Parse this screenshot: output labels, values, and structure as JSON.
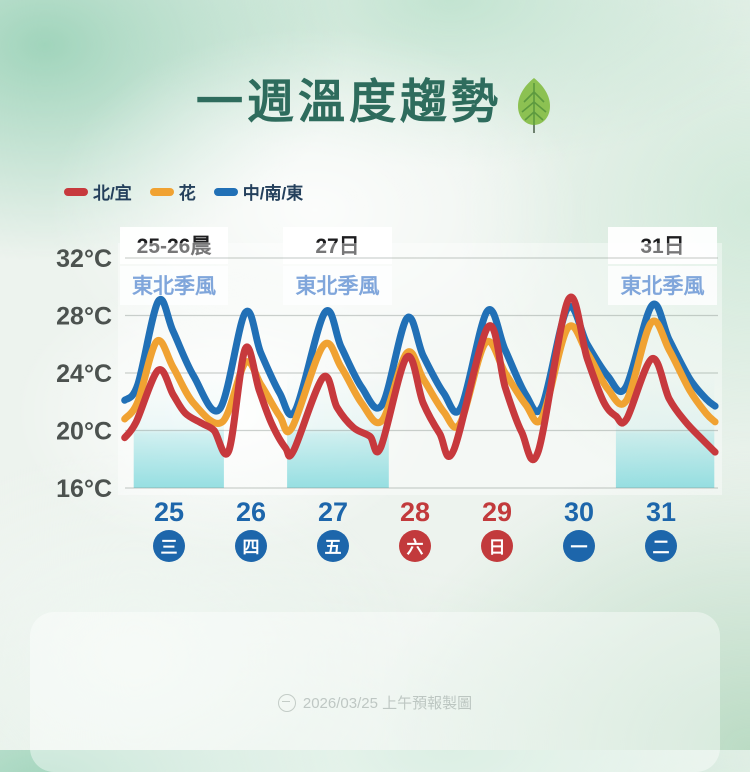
{
  "title": {
    "text": "一週溫度趨勢",
    "icon": "leaf-icon"
  },
  "legend": [
    {
      "label": "北/宜",
      "color": "#c7393d"
    },
    {
      "label": "花",
      "color": "#f0a232"
    },
    {
      "label": "中/南/東",
      "color": "#2170b6"
    }
  ],
  "annotations": [
    {
      "period": "25-26晨",
      "note": "東北季風"
    },
    {
      "period": "27日",
      "note": "東北季風"
    },
    {
      "period": "31日",
      "note": "東北季風"
    }
  ],
  "footer": {
    "watermark": "2026/03/25 上午預報製圖"
  },
  "chart_data": {
    "type": "line",
    "title": "一週溫度趨勢",
    "ylabel": "°C",
    "ylim": [
      16,
      32
    ],
    "yticks": [
      32,
      28,
      24,
      20,
      16
    ],
    "ytick_labels": [
      "32°C",
      "28°C",
      "24°C",
      "20°C",
      "16°C"
    ],
    "grid": true,
    "legend_position": "top-left",
    "x_axis_days": [
      {
        "date": "25",
        "weekday": "三",
        "color": "#1d66ab"
      },
      {
        "date": "26",
        "weekday": "四",
        "color": "#1d66ab"
      },
      {
        "date": "27",
        "weekday": "五",
        "color": "#1d66ab"
      },
      {
        "date": "28",
        "weekday": "六",
        "color": "#c23a3c"
      },
      {
        "date": "29",
        "weekday": "日",
        "color": "#c23a3c"
      },
      {
        "date": "30",
        "weekday": "一",
        "color": "#1d66ab"
      },
      {
        "date": "31",
        "weekday": "二",
        "color": "#1d66ab"
      }
    ],
    "cold_bands_day_ranges": [
      [
        24.57,
        25.67
      ],
      [
        26.44,
        27.68
      ],
      [
        30.45,
        31.65
      ]
    ],
    "cold_band_color": "#7ed8dc",
    "series": [
      {
        "name": "中/南/東",
        "color": "#2170b6",
        "points": [
          [
            24.46,
            22.1
          ],
          [
            24.62,
            23.2
          ],
          [
            24.87,
            29.0
          ],
          [
            25.05,
            26.9
          ],
          [
            25.3,
            23.8
          ],
          [
            25.62,
            21.5
          ],
          [
            25.93,
            28.2
          ],
          [
            26.12,
            25.4
          ],
          [
            26.35,
            22.6
          ],
          [
            26.54,
            21.4
          ],
          [
            26.9,
            28.2
          ],
          [
            27.1,
            25.8
          ],
          [
            27.35,
            23.0
          ],
          [
            27.6,
            21.8
          ],
          [
            27.9,
            27.8
          ],
          [
            28.1,
            25.2
          ],
          [
            28.35,
            22.6
          ],
          [
            28.56,
            21.6
          ],
          [
            28.88,
            28.3
          ],
          [
            29.1,
            25.6
          ],
          [
            29.35,
            22.5
          ],
          [
            29.55,
            21.7
          ],
          [
            29.86,
            28.5
          ],
          [
            30.1,
            26.0
          ],
          [
            30.35,
            23.8
          ],
          [
            30.57,
            23.0
          ],
          [
            30.89,
            28.7
          ],
          [
            31.1,
            26.3
          ],
          [
            31.35,
            23.6
          ],
          [
            31.55,
            22.2
          ],
          [
            31.66,
            21.7
          ]
        ]
      },
      {
        "name": "花",
        "color": "#f0a232",
        "points": [
          [
            24.46,
            20.8
          ],
          [
            24.62,
            22.0
          ],
          [
            24.85,
            26.2
          ],
          [
            25.05,
            24.4
          ],
          [
            25.3,
            21.9
          ],
          [
            25.65,
            20.6
          ],
          [
            25.93,
            24.7
          ],
          [
            26.12,
            23.2
          ],
          [
            26.35,
            21.0
          ],
          [
            26.5,
            20.2
          ],
          [
            26.88,
            25.9
          ],
          [
            27.1,
            24.4
          ],
          [
            27.35,
            21.9
          ],
          [
            27.6,
            20.7
          ],
          [
            27.9,
            25.4
          ],
          [
            28.1,
            23.6
          ],
          [
            28.35,
            21.3
          ],
          [
            28.55,
            20.5
          ],
          [
            28.86,
            26.1
          ],
          [
            29.1,
            24.0
          ],
          [
            29.35,
            21.8
          ],
          [
            29.55,
            20.9
          ],
          [
            29.86,
            27.1
          ],
          [
            30.1,
            25.4
          ],
          [
            30.35,
            22.9
          ],
          [
            30.58,
            22.1
          ],
          [
            30.88,
            27.5
          ],
          [
            31.1,
            25.6
          ],
          [
            31.35,
            22.8
          ],
          [
            31.55,
            21.2
          ],
          [
            31.66,
            20.6
          ]
        ]
      },
      {
        "name": "北/宜",
        "color": "#c7393d",
        "points": [
          [
            24.46,
            19.5
          ],
          [
            24.6,
            20.6
          ],
          [
            24.87,
            24.2
          ],
          [
            25.05,
            22.5
          ],
          [
            25.2,
            21.2
          ],
          [
            25.4,
            20.5
          ],
          [
            25.55,
            20.0
          ],
          [
            25.73,
            18.6
          ],
          [
            25.93,
            25.7
          ],
          [
            26.1,
            22.8
          ],
          [
            26.25,
            20.5
          ],
          [
            26.42,
            18.8
          ],
          [
            26.52,
            18.6
          ],
          [
            26.88,
            23.7
          ],
          [
            27.05,
            21.6
          ],
          [
            27.25,
            20.2
          ],
          [
            27.45,
            19.6
          ],
          [
            27.58,
            18.8
          ],
          [
            27.9,
            25.1
          ],
          [
            28.1,
            21.9
          ],
          [
            28.3,
            19.8
          ],
          [
            28.47,
            18.6
          ],
          [
            28.89,
            27.2
          ],
          [
            29.1,
            23.0
          ],
          [
            29.3,
            19.9
          ],
          [
            29.5,
            18.5
          ],
          [
            29.87,
            29.1
          ],
          [
            30.1,
            25.0
          ],
          [
            30.3,
            22.0
          ],
          [
            30.45,
            21.0
          ],
          [
            30.58,
            20.8
          ],
          [
            30.89,
            25.0
          ],
          [
            31.1,
            22.2
          ],
          [
            31.3,
            20.6
          ],
          [
            31.5,
            19.4
          ],
          [
            31.66,
            18.5
          ]
        ]
      }
    ]
  }
}
